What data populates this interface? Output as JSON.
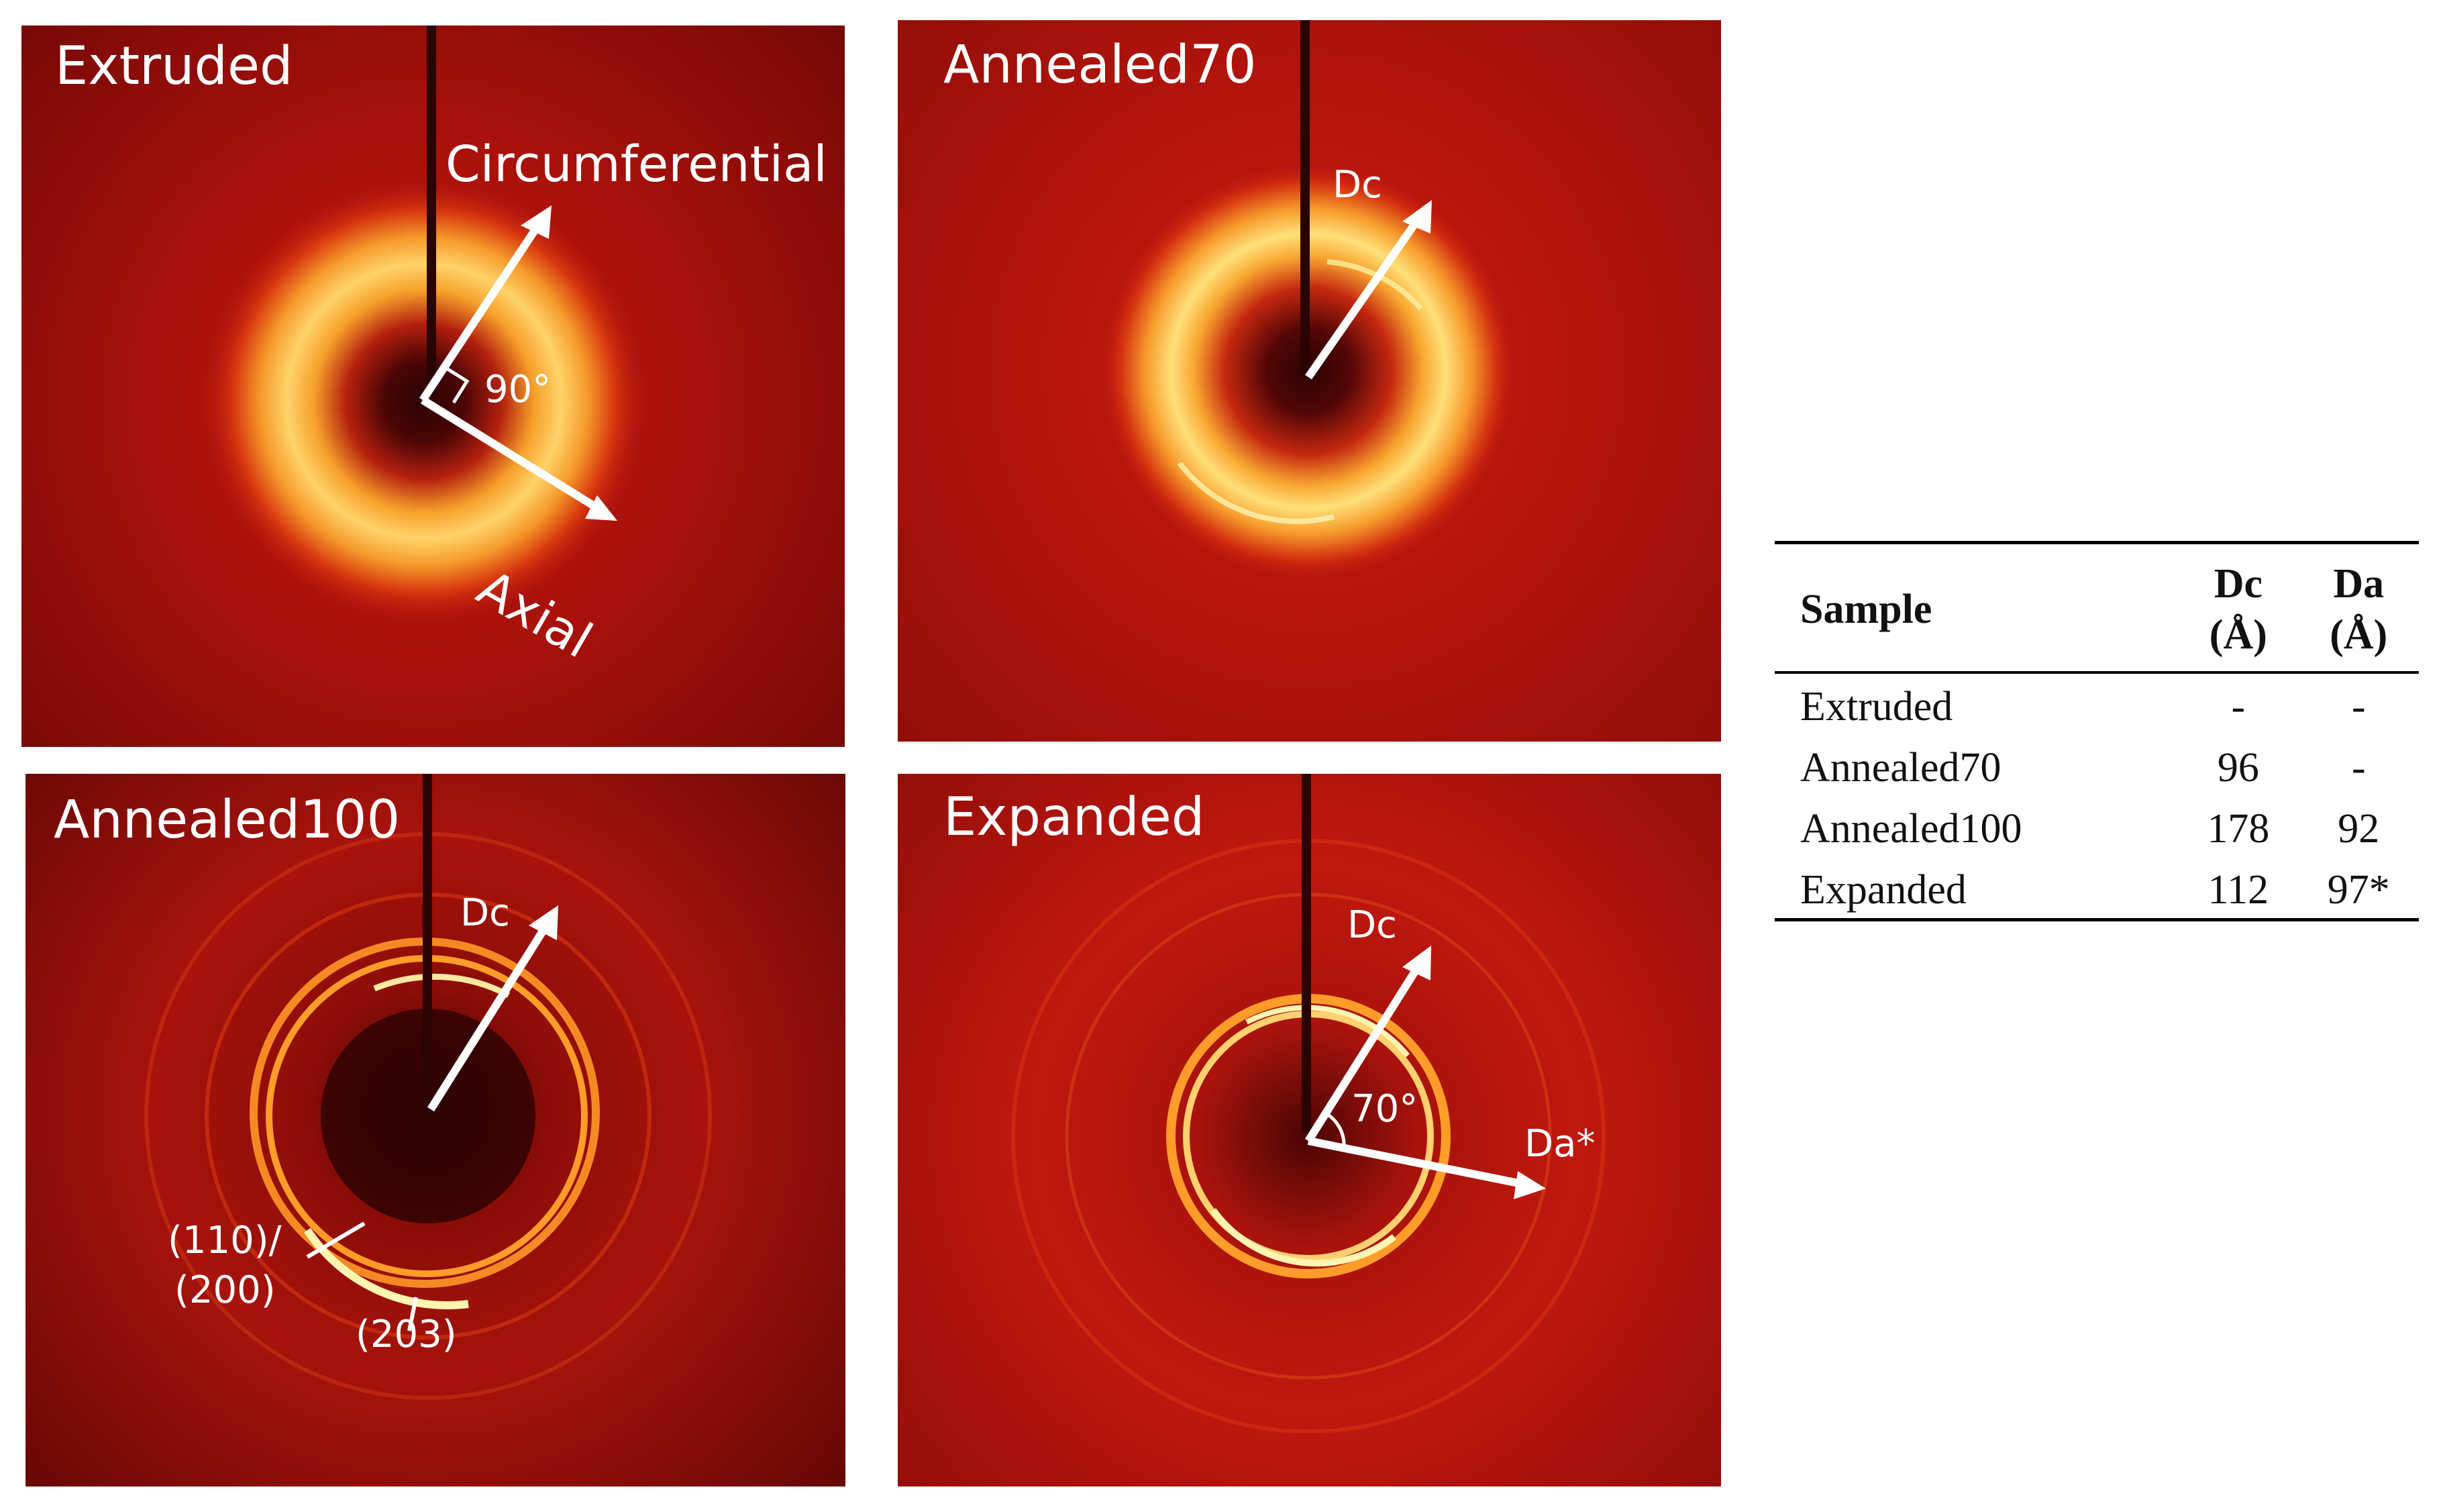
{
  "panels": {
    "extruded": {
      "title": "Extruded",
      "arrow_circ_label": "Circumferential",
      "arrow_axial_label": "Axial",
      "angle_label": "90°"
    },
    "annealed70": {
      "title": "Annealed70",
      "dc_label": "Dc"
    },
    "annealed100": {
      "title": "Annealed100",
      "dc_label": "Dc",
      "ring_label_1a": "(110)/",
      "ring_label_1b": "(200)",
      "ring_label_2": "(203)"
    },
    "expanded": {
      "title": "Expanded",
      "dc_label": "Dc",
      "da_label": "Da*",
      "angle_label": "70°"
    }
  },
  "table": {
    "headers": {
      "sample": "Sample",
      "dc": "Dc",
      "dc_unit": "(Å)",
      "da": "Da",
      "da_unit": "(Å)"
    },
    "rows": [
      {
        "sample": "Extruded",
        "dc": "-",
        "da": "-"
      },
      {
        "sample": "Annealed70",
        "dc": "96",
        "da": "-"
      },
      {
        "sample": "Annealed100",
        "dc": "178",
        "da": "92"
      },
      {
        "sample": "Expanded",
        "dc": "112",
        "da": "97*"
      }
    ]
  },
  "colors": {
    "background_red": "#a30f0a",
    "ring_orange": "#f68a1a",
    "ring_yellow": "#fff4a0",
    "annotation": "#ffffff"
  }
}
